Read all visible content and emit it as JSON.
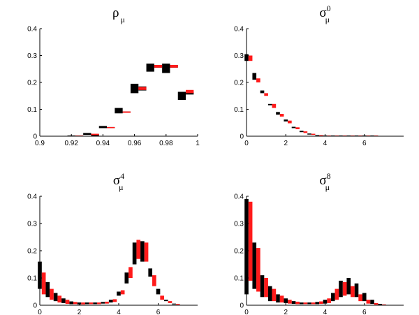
{
  "chart_data": [
    {
      "type": "bar",
      "title": "ρ_μ",
      "title_main": "ρ",
      "title_sub": "μ",
      "title_sup": "",
      "xlim": [
        0.9,
        1.0
      ],
      "ylim": [
        0,
        0.4
      ],
      "xticks": [
        "0.9",
        "0.92",
        "0.94",
        "0.96",
        "0.98",
        "1"
      ],
      "yticks": [
        "0",
        "0.1",
        "0.2",
        "0.3",
        "0.4"
      ],
      "bin_width": 0.005,
      "series": [
        {
          "color": "#000000",
          "points": [
            [
              0.92,
              0.0,
              0.0
            ],
            [
              0.925,
              0.0,
              0.002
            ],
            [
              0.93,
              0.005,
              0.012
            ],
            [
              0.935,
              0.0,
              0.008
            ],
            [
              0.94,
              0.03,
              0.038
            ],
            [
              0.945,
              0.03,
              0.034
            ],
            [
              0.95,
              0.085,
              0.105
            ],
            [
              0.955,
              0.087,
              0.092
            ],
            [
              0.96,
              0.16,
              0.195
            ],
            [
              0.965,
              0.17,
              0.185
            ],
            [
              0.97,
              0.24,
              0.27
            ],
            [
              0.975,
              0.255,
              0.265
            ],
            [
              0.98,
              0.235,
              0.27
            ],
            [
              0.985,
              0.255,
              0.265
            ],
            [
              0.99,
              0.135,
              0.165
            ],
            [
              0.995,
              0.155,
              0.165
            ]
          ]
        },
        {
          "color": "#ff1a1a",
          "points": [
            [
              0.925,
              0.0,
              0.002
            ],
            [
              0.935,
              0.004,
              0.009
            ],
            [
              0.945,
              0.03,
              0.034
            ],
            [
              0.955,
              0.087,
              0.092
            ],
            [
              0.965,
              0.172,
              0.183
            ],
            [
              0.975,
              0.255,
              0.265
            ],
            [
              0.985,
              0.255,
              0.265
            ],
            [
              0.995,
              0.16,
              0.172
            ]
          ]
        }
      ]
    },
    {
      "type": "bar",
      "title": "σ_μ^0",
      "title_main": "σ",
      "title_sub": "μ",
      "title_sup": "0",
      "xlim": [
        0,
        8
      ],
      "ylim": [
        0,
        0.4
      ],
      "xticks": [
        "0",
        "2",
        "4",
        "6"
      ],
      "yticks": [
        "0",
        "0.1",
        "0.2",
        "0.3",
        "0.4"
      ],
      "bin_width": 0.2,
      "series": [
        {
          "color": "#000000",
          "points": [
            [
              0.0,
              0.28,
              0.305
            ],
            [
              0.4,
              0.21,
              0.235
            ],
            [
              0.8,
              0.16,
              0.17
            ],
            [
              1.2,
              0.115,
              0.12
            ],
            [
              1.6,
              0.08,
              0.09
            ],
            [
              2.0,
              0.055,
              0.062
            ],
            [
              2.4,
              0.03,
              0.035
            ],
            [
              2.8,
              0.015,
              0.02
            ],
            [
              3.2,
              0.006,
              0.01
            ],
            [
              3.6,
              0.002,
              0.004
            ],
            [
              4.0,
              0.0,
              0.002
            ],
            [
              4.4,
              0.0,
              0.001
            ],
            [
              4.8,
              0.0,
              0.001
            ],
            [
              5.2,
              0.0,
              0.001
            ],
            [
              5.6,
              0.0,
              0.001
            ],
            [
              6.0,
              0.0,
              0.001
            ],
            [
              6.4,
              0.0,
              0.001
            ]
          ]
        },
        {
          "color": "#ff1a1a",
          "points": [
            [
              0.2,
              0.28,
              0.3
            ],
            [
              0.6,
              0.2,
              0.215
            ],
            [
              1.0,
              0.15,
              0.16
            ],
            [
              1.4,
              0.105,
              0.12
            ],
            [
              1.8,
              0.073,
              0.083
            ],
            [
              2.2,
              0.048,
              0.058
            ],
            [
              2.6,
              0.026,
              0.033
            ],
            [
              3.0,
              0.012,
              0.018
            ],
            [
              3.4,
              0.005,
              0.009
            ],
            [
              3.8,
              0.001,
              0.004
            ],
            [
              4.2,
              0.0,
              0.002
            ],
            [
              4.6,
              0.0,
              0.001
            ],
            [
              5.0,
              0.0,
              0.001
            ],
            [
              5.4,
              0.0,
              0.001
            ],
            [
              5.8,
              0.0,
              0.001
            ],
            [
              6.2,
              0.0,
              0.001
            ],
            [
              6.6,
              0.0,
              0.001
            ]
          ]
        }
      ]
    },
    {
      "type": "bar",
      "title": "σ_μ^4",
      "title_main": "σ",
      "title_sub": "μ",
      "title_sup": "4",
      "xlim": [
        0,
        8
      ],
      "ylim": [
        0,
        0.4
      ],
      "xticks": [
        "0",
        "2",
        "4",
        "6"
      ],
      "yticks": [
        "0",
        "0.1",
        "0.2",
        "0.3",
        "0.4"
      ],
      "bin_width": 0.2,
      "series": [
        {
          "color": "#000000",
          "points": [
            [
              0.0,
              0.06,
              0.16
            ],
            [
              0.4,
              0.03,
              0.085
            ],
            [
              0.8,
              0.015,
              0.045
            ],
            [
              1.2,
              0.008,
              0.025
            ],
            [
              1.6,
              0.004,
              0.014
            ],
            [
              2.0,
              0.003,
              0.01
            ],
            [
              2.4,
              0.004,
              0.01
            ],
            [
              2.8,
              0.004,
              0.01
            ],
            [
              3.2,
              0.006,
              0.012
            ],
            [
              3.6,
              0.01,
              0.02
            ],
            [
              4.0,
              0.035,
              0.05
            ],
            [
              4.4,
              0.08,
              0.12
            ],
            [
              4.8,
              0.15,
              0.23
            ],
            [
              5.2,
              0.16,
              0.235
            ],
            [
              5.6,
              0.105,
              0.135
            ],
            [
              6.0,
              0.04,
              0.06
            ],
            [
              6.4,
              0.015,
              0.02
            ],
            [
              6.8,
              0.003,
              0.006
            ]
          ]
        },
        {
          "color": "#ff1a1a",
          "points": [
            [
              0.2,
              0.04,
              0.12
            ],
            [
              0.6,
              0.02,
              0.06
            ],
            [
              1.0,
              0.01,
              0.035
            ],
            [
              1.4,
              0.005,
              0.02
            ],
            [
              1.8,
              0.004,
              0.012
            ],
            [
              2.2,
              0.003,
              0.01
            ],
            [
              2.6,
              0.004,
              0.01
            ],
            [
              3.0,
              0.004,
              0.01
            ],
            [
              3.4,
              0.006,
              0.013
            ],
            [
              3.8,
              0.012,
              0.022
            ],
            [
              4.2,
              0.04,
              0.055
            ],
            [
              4.6,
              0.1,
              0.14
            ],
            [
              5.0,
              0.17,
              0.24
            ],
            [
              5.4,
              0.16,
              0.23
            ],
            [
              5.8,
              0.07,
              0.11
            ],
            [
              6.2,
              0.02,
              0.035
            ],
            [
              6.6,
              0.008,
              0.015
            ],
            [
              7.0,
              0.002,
              0.005
            ]
          ]
        }
      ]
    },
    {
      "type": "bar",
      "title": "σ_μ^8",
      "title_main": "σ",
      "title_sub": "μ",
      "title_sup": "8",
      "xlim": [
        0,
        8
      ],
      "ylim": [
        0,
        0.4
      ],
      "xticks": [
        "0",
        "2",
        "4",
        "6"
      ],
      "yticks": [
        "0",
        "0.1",
        "0.2",
        "0.3",
        "0.4"
      ],
      "bin_width": 0.2,
      "series": [
        {
          "color": "#000000",
          "points": [
            [
              0.0,
              0.04,
              0.39
            ],
            [
              0.4,
              0.06,
              0.23
            ],
            [
              0.8,
              0.03,
              0.11
            ],
            [
              1.2,
              0.015,
              0.07
            ],
            [
              1.6,
              0.01,
              0.04
            ],
            [
              2.0,
              0.008,
              0.025
            ],
            [
              2.4,
              0.005,
              0.015
            ],
            [
              2.8,
              0.004,
              0.01
            ],
            [
              3.2,
              0.004,
              0.01
            ],
            [
              3.6,
              0.004,
              0.012
            ],
            [
              4.0,
              0.006,
              0.02
            ],
            [
              4.4,
              0.015,
              0.045
            ],
            [
              4.8,
              0.03,
              0.09
            ],
            [
              5.2,
              0.04,
              0.1
            ],
            [
              5.6,
              0.03,
              0.08
            ],
            [
              6.0,
              0.015,
              0.045
            ],
            [
              6.4,
              0.005,
              0.02
            ],
            [
              6.8,
              0.001,
              0.005
            ]
          ]
        },
        {
          "color": "#ff1a1a",
          "points": [
            [
              0.2,
              0.09,
              0.38
            ],
            [
              0.6,
              0.05,
              0.21
            ],
            [
              1.0,
              0.03,
              0.1
            ],
            [
              1.4,
              0.015,
              0.06
            ],
            [
              1.8,
              0.01,
              0.035
            ],
            [
              2.2,
              0.006,
              0.02
            ],
            [
              2.6,
              0.004,
              0.013
            ],
            [
              3.0,
              0.004,
              0.01
            ],
            [
              3.4,
              0.004,
              0.01
            ],
            [
              3.8,
              0.005,
              0.014
            ],
            [
              4.2,
              0.008,
              0.025
            ],
            [
              4.6,
              0.02,
              0.06
            ],
            [
              5.0,
              0.035,
              0.085
            ],
            [
              5.4,
              0.03,
              0.07
            ],
            [
              5.8,
              0.015,
              0.04
            ],
            [
              6.2,
              0.006,
              0.02
            ],
            [
              6.6,
              0.002,
              0.008
            ],
            [
              7.0,
              0.0,
              0.003
            ]
          ]
        }
      ]
    }
  ]
}
